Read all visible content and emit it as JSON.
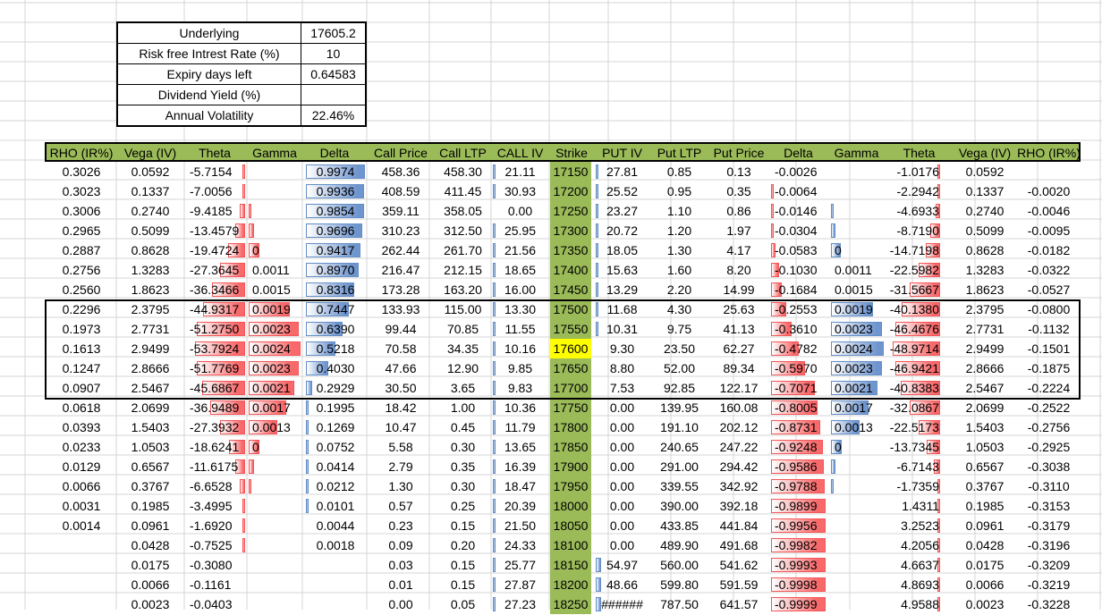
{
  "info_table": [
    {
      "label": "Underlying",
      "value": "17605.2"
    },
    {
      "label": "Risk free Intrest Rate (%)",
      "value": "10"
    },
    {
      "label": "Expiry days left",
      "value": "0.64583"
    },
    {
      "label": "Dividend Yield (%)",
      "value": ""
    },
    {
      "label": "Annual Volatility",
      "value": "22.46%"
    }
  ],
  "headers": [
    "RHO (IR%)",
    "Vega (IV)",
    "Theta",
    "Gamma",
    "Delta",
    "Call Price",
    "Call LTP",
    "CALL IV",
    "Strike",
    "PUT IV",
    "Put LTP",
    "Put Price",
    "Delta",
    "Gamma",
    "Theta",
    "Vega (IV)",
    "RHO (IR%)"
  ],
  "colors": {
    "header_bg": "#9bbb59",
    "strike_bg": "#9bbb59",
    "atm_strike_bg": "#ffff00",
    "red_bar": "#f8696b",
    "blue_bar": "#638ec6"
  },
  "rows": [
    {
      "rho_c": "0.3026",
      "vega_c": "0.0592",
      "theta_c": "-5.7154",
      "gamma_c": "",
      "delta_c": "0.9974",
      "call_price": "458.36",
      "call_ltp": "458.30",
      "call_iv": "21.11",
      "strike": "17150",
      "put_iv": "27.81",
      "put_ltp": "0.85",
      "put_price": "0.13",
      "delta_p": "-0.0026",
      "gamma_p": "",
      "theta_p": "-1.0176",
      "vega_p": "0.0592",
      "rho_p": "",
      "theta_c_bar": 0.04,
      "gamma_c_bar": 0.0,
      "delta_c_bar": 1.0,
      "call_iv_bar": 0.02,
      "put_iv_bar": 0.05,
      "delta_p_bar": 0.0,
      "gamma_p_bar": 0.0,
      "theta_p_bar": 0.02
    },
    {
      "rho_c": "0.3023",
      "vega_c": "0.1337",
      "theta_c": "-7.0056",
      "gamma_c": "",
      "delta_c": "0.9936",
      "call_price": "408.59",
      "call_ltp": "411.45",
      "call_iv": "30.93",
      "strike": "17200",
      "put_iv": "25.52",
      "put_ltp": "0.95",
      "put_price": "0.35",
      "delta_p": "-0.0064",
      "gamma_p": "",
      "theta_p": "-2.2942",
      "vega_p": "0.1337",
      "rho_p": "-0.0020",
      "theta_c_bar": 0.06,
      "gamma_c_bar": 0.0,
      "delta_c_bar": 0.99,
      "call_iv_bar": 0.03,
      "put_iv_bar": 0.04,
      "delta_p_bar": 0.01,
      "gamma_p_bar": 0.0,
      "theta_p_bar": 0.05
    },
    {
      "rho_c": "0.3006",
      "vega_c": "0.2740",
      "theta_c": "-9.4185",
      "gamma_c": "",
      "delta_c": "0.9854",
      "call_price": "359.11",
      "call_ltp": "358.05",
      "call_iv": "0.00",
      "strike": "17250",
      "put_iv": "23.27",
      "put_ltp": "1.10",
      "put_price": "0.86",
      "delta_p": "-0.0146",
      "gamma_p": "",
      "theta_p": "-4.6933",
      "vega_p": "0.2740",
      "rho_p": "-0.0046",
      "theta_c_bar": 0.1,
      "gamma_c_bar": 0.03,
      "delta_c_bar": 0.98,
      "call_iv_bar": 0.0,
      "put_iv_bar": 0.03,
      "delta_p_bar": 0.03,
      "gamma_p_bar": 0.02,
      "theta_p_bar": 0.1
    },
    {
      "rho_c": "0.2965",
      "vega_c": "0.5099",
      "theta_c": "-13.4579",
      "gamma_c": "",
      "delta_c": "0.9696",
      "call_price": "310.23",
      "call_ltp": "312.50",
      "call_iv": "25.95",
      "strike": "17300",
      "put_iv": "20.72",
      "put_ltp": "1.20",
      "put_price": "1.97",
      "delta_p": "-0.0304",
      "gamma_p": "",
      "theta_p": "-8.7190",
      "vega_p": "0.5099",
      "rho_p": "-0.0095",
      "theta_c_bar": 0.2,
      "gamma_c_bar": 0.1,
      "delta_c_bar": 0.96,
      "call_iv_bar": 0.03,
      "put_iv_bar": 0.03,
      "delta_p_bar": 0.05,
      "gamma_p_bar": 0.08,
      "theta_p_bar": 0.2
    },
    {
      "rho_c": "0.2887",
      "vega_c": "0.8628",
      "theta_c": "-19.4724",
      "gamma_c": "0",
      "delta_c": "0.9417",
      "call_price": "262.44",
      "call_ltp": "261.70",
      "call_iv": "21.56",
      "strike": "17350",
      "put_iv": "18.05",
      "put_ltp": "1.30",
      "put_price": "4.17",
      "delta_p": "-0.0583",
      "gamma_p": "0",
      "theta_p": "-14.7198",
      "vega_p": "0.8628",
      "rho_p": "-0.0182",
      "theta_c_bar": 0.33,
      "gamma_c_bar": 0.2,
      "delta_c_bar": 0.93,
      "call_iv_bar": 0.03,
      "put_iv_bar": 0.03,
      "delta_p_bar": 0.09,
      "gamma_p_bar": 0.18,
      "theta_p_bar": 0.3
    },
    {
      "rho_c": "0.2756",
      "vega_c": "1.3283",
      "theta_c": "-27.3645",
      "gamma_c": "0.0011",
      "delta_c": "0.8970",
      "call_price": "216.47",
      "call_ltp": "212.15",
      "call_iv": "18.65",
      "strike": "17400",
      "put_iv": "15.63",
      "put_ltp": "1.60",
      "put_price": "8.20",
      "delta_p": "-0.1030",
      "gamma_p": "0.0011",
      "theta_p": "-22.5982",
      "vega_p": "1.3283",
      "rho_p": "-0.0322",
      "theta_c_bar": 0.5,
      "gamma_c_bar": 0.0,
      "delta_c_bar": 0.9,
      "call_iv_bar": 0.03,
      "put_iv_bar": 0.03,
      "delta_p_bar": 0.15,
      "gamma_p_bar": 0.0,
      "theta_p_bar": 0.46
    },
    {
      "rho_c": "0.2560",
      "vega_c": "1.8623",
      "theta_c": "-36.3466",
      "gamma_c": "0.0015",
      "delta_c": "0.8316",
      "call_price": "173.28",
      "call_ltp": "163.20",
      "call_iv": "16.00",
      "strike": "17450",
      "put_iv": "13.29",
      "put_ltp": "2.20",
      "put_price": "14.99",
      "delta_p": "-0.1684",
      "gamma_p": "0.0015",
      "theta_p": "-31.5667",
      "vega_p": "1.8623",
      "rho_p": "-0.0527",
      "theta_c_bar": 0.67,
      "gamma_c_bar": 0.0,
      "delta_c_bar": 0.82,
      "call_iv_bar": 0.03,
      "put_iv_bar": 0.03,
      "delta_p_bar": 0.2,
      "gamma_p_bar": 0.0,
      "theta_p_bar": 0.64
    },
    {
      "rho_c": "0.2296",
      "vega_c": "2.3795",
      "theta_c": "-44.9317",
      "gamma_c": "0.0019",
      "delta_c": "0.7447",
      "call_price": "133.93",
      "call_ltp": "115.00",
      "call_iv": "13.30",
      "strike": "17500",
      "put_iv": "11.68",
      "put_ltp": "4.30",
      "put_price": "25.63",
      "delta_p": "-0.2553",
      "gamma_p": "0.0019",
      "theta_p": "-40.1380",
      "vega_p": "2.3795",
      "rho_p": "-0.0800",
      "theta_c_bar": 0.84,
      "gamma_c_bar": 0.8,
      "delta_c_bar": 0.72,
      "call_iv_bar": 0.03,
      "put_iv_bar": 0.03,
      "delta_p_bar": 0.28,
      "gamma_p_bar": 0.8,
      "theta_p_bar": 0.82
    },
    {
      "rho_c": "0.1973",
      "vega_c": "2.7731",
      "theta_c": "-51.2750",
      "gamma_c": "0.0023",
      "delta_c": "0.6390",
      "call_price": "99.44",
      "call_ltp": "70.85",
      "call_iv": "11.55",
      "strike": "17550",
      "put_iv": "10.31",
      "put_ltp": "9.75",
      "put_price": "41.13",
      "delta_p": "-0.3610",
      "gamma_p": "0.0023",
      "theta_p": "-46.4676",
      "vega_p": "2.7731",
      "rho_p": "-0.1132",
      "theta_c_bar": 0.96,
      "gamma_c_bar": 0.96,
      "delta_c_bar": 0.62,
      "call_iv_bar": 0.03,
      "put_iv_bar": 0.03,
      "delta_p_bar": 0.38,
      "gamma_p_bar": 0.96,
      "theta_p_bar": 0.95
    },
    {
      "rho_c": "0.1613",
      "vega_c": "2.9499",
      "theta_c": "-53.7924",
      "gamma_c": "0.0024",
      "delta_c": "0.5218",
      "call_price": "70.58",
      "call_ltp": "34.35",
      "call_iv": "10.16",
      "strike": "17600",
      "atm": true,
      "put_iv": "9.30",
      "put_ltp": "23.50",
      "put_price": "62.27",
      "delta_p": "-0.4782",
      "gamma_p": "0.0024",
      "theta_p": "-48.9714",
      "vega_p": "2.9499",
      "rho_p": "-0.1501",
      "theta_c_bar": 1.0,
      "gamma_c_bar": 1.0,
      "delta_c_bar": 0.5,
      "call_iv_bar": 0.03,
      "put_iv_bar": 0.0,
      "delta_p_bar": 0.5,
      "gamma_p_bar": 1.0,
      "theta_p_bar": 1.0
    },
    {
      "rho_c": "0.1247",
      "vega_c": "2.8666",
      "theta_c": "-51.7769",
      "gamma_c": "0.0023",
      "delta_c": "0.4030",
      "call_price": "47.66",
      "call_ltp": "12.90",
      "call_iv": "9.85",
      "strike": "17650",
      "put_iv": "8.80",
      "put_ltp": "52.00",
      "put_price": "89.34",
      "delta_p": "-0.5970",
      "gamma_p": "0.0023",
      "theta_p": "-46.9421",
      "vega_p": "2.8666",
      "rho_p": "-0.1875",
      "theta_c_bar": 0.96,
      "gamma_c_bar": 0.96,
      "delta_c_bar": 0.38,
      "call_iv_bar": 0.03,
      "put_iv_bar": 0.0,
      "delta_p_bar": 0.62,
      "gamma_p_bar": 0.96,
      "theta_p_bar": 0.95
    },
    {
      "rho_c": "0.0907",
      "vega_c": "2.5467",
      "theta_c": "-45.6867",
      "gamma_c": "0.0021",
      "delta_c": "0.2929",
      "call_price": "30.50",
      "call_ltp": "3.65",
      "call_iv": "9.83",
      "strike": "17700",
      "put_iv": "7.53",
      "put_ltp": "92.85",
      "put_price": "122.17",
      "delta_p": "-0.7071",
      "gamma_p": "0.0021",
      "theta_p": "-40.8383",
      "vega_p": "2.5467",
      "rho_p": "-0.2224",
      "theta_c_bar": 0.85,
      "gamma_c_bar": 0.88,
      "delta_c_bar": 0.1,
      "call_iv_bar": 0.03,
      "put_iv_bar": 0.0,
      "delta_p_bar": 0.8,
      "gamma_p_bar": 0.88,
      "theta_p_bar": 0.83
    },
    {
      "rho_c": "0.0618",
      "vega_c": "2.0699",
      "theta_c": "-36.9489",
      "gamma_c": "0.0017",
      "delta_c": "0.1995",
      "call_price": "18.42",
      "call_ltp": "1.00",
      "call_iv": "10.36",
      "strike": "17750",
      "put_iv": "0.00",
      "put_ltp": "139.95",
      "put_price": "160.08",
      "delta_p": "-0.8005",
      "gamma_p": "0.0017",
      "theta_p": "-32.0867",
      "vega_p": "2.0699",
      "rho_p": "-0.2522",
      "theta_c_bar": 0.69,
      "gamma_c_bar": 0.72,
      "delta_c_bar": 0.05,
      "call_iv_bar": 0.03,
      "put_iv_bar": 0.0,
      "delta_p_bar": 0.86,
      "gamma_p_bar": 0.72,
      "theta_p_bar": 0.65
    },
    {
      "rho_c": "0.0393",
      "vega_c": "1.5403",
      "theta_c": "-27.3932",
      "gamma_c": "0.0013",
      "delta_c": "0.1269",
      "call_price": "10.47",
      "call_ltp": "0.45",
      "call_iv": "11.79",
      "strike": "17800",
      "put_iv": "0.00",
      "put_ltp": "191.10",
      "put_price": "202.12",
      "delta_p": "-0.8731",
      "gamma_p": "0.0013",
      "theta_p": "-22.5173",
      "vega_p": "1.5403",
      "rho_p": "-0.2756",
      "theta_c_bar": 0.5,
      "gamma_c_bar": 0.55,
      "delta_c_bar": 0.03,
      "call_iv_bar": 0.03,
      "put_iv_bar": 0.0,
      "delta_p_bar": 0.9,
      "gamma_p_bar": 0.55,
      "theta_p_bar": 0.46
    },
    {
      "rho_c": "0.0233",
      "vega_c": "1.0503",
      "theta_c": "-18.6241",
      "gamma_c": "0",
      "delta_c": "0.0752",
      "call_price": "5.58",
      "call_ltp": "0.30",
      "call_iv": "13.65",
      "strike": "17850",
      "put_iv": "0.00",
      "put_ltp": "240.65",
      "put_price": "247.22",
      "delta_p": "-0.9248",
      "gamma_p": "0",
      "theta_p": "-13.7345",
      "vega_p": "1.0503",
      "rho_p": "-0.2925",
      "theta_c_bar": 0.32,
      "gamma_c_bar": 0.2,
      "delta_c_bar": 0.02,
      "call_iv_bar": 0.03,
      "put_iv_bar": 0.0,
      "delta_p_bar": 0.95,
      "gamma_p_bar": 0.2,
      "theta_p_bar": 0.28
    },
    {
      "rho_c": "0.0129",
      "vega_c": "0.6567",
      "theta_c": "-11.6175",
      "gamma_c": "",
      "delta_c": "0.0414",
      "call_price": "2.79",
      "call_ltp": "0.35",
      "call_iv": "16.39",
      "strike": "17900",
      "put_iv": "0.00",
      "put_ltp": "291.00",
      "put_price": "294.42",
      "delta_p": "-0.9586",
      "gamma_p": "",
      "theta_p": "-6.7143",
      "vega_p": "0.6567",
      "rho_p": "-0.3038",
      "theta_c_bar": 0.2,
      "gamma_c_bar": 0.1,
      "delta_c_bar": 0.01,
      "call_iv_bar": 0.03,
      "put_iv_bar": 0.0,
      "delta_p_bar": 0.97,
      "gamma_p_bar": 0.08,
      "theta_p_bar": 0.14
    },
    {
      "rho_c": "0.0066",
      "vega_c": "0.3767",
      "theta_c": "-6.6528",
      "gamma_c": "",
      "delta_c": "0.0212",
      "call_price": "1.30",
      "call_ltp": "0.30",
      "call_iv": "18.47",
      "strike": "17950",
      "put_iv": "0.00",
      "put_ltp": "339.55",
      "put_price": "342.92",
      "delta_p": "-0.9788",
      "gamma_p": "",
      "theta_p": "-1.7359",
      "vega_p": "0.3767",
      "rho_p": "-0.3110",
      "theta_c_bar": 0.1,
      "gamma_c_bar": 0.03,
      "delta_c_bar": 0.01,
      "call_iv_bar": 0.03,
      "put_iv_bar": 0.0,
      "delta_p_bar": 0.99,
      "gamma_p_bar": 0.02,
      "theta_p_bar": 0.04
    },
    {
      "rho_c": "0.0031",
      "vega_c": "0.1985",
      "theta_c": "-3.4995",
      "gamma_c": "",
      "delta_c": "0.0101",
      "call_price": "0.57",
      "call_ltp": "0.25",
      "call_iv": "20.39",
      "strike": "18000",
      "put_iv": "0.00",
      "put_ltp": "390.00",
      "put_price": "392.18",
      "delta_p": "-0.9899",
      "gamma_p": "",
      "theta_p": "1.4311",
      "vega_p": "0.1985",
      "rho_p": "-0.3153",
      "theta_c_bar": 0.05,
      "gamma_c_bar": 0.0,
      "delta_c_bar": 0.01,
      "call_iv_bar": 0.03,
      "put_iv_bar": 0.0,
      "delta_p_bar": 1.0,
      "gamma_p_bar": 0.0,
      "theta_p_bar": 0.02
    },
    {
      "rho_c": "0.0014",
      "vega_c": "0.0961",
      "theta_c": "-1.6920",
      "gamma_c": "",
      "delta_c": "0.0044",
      "call_price": "0.23",
      "call_ltp": "0.15",
      "call_iv": "21.50",
      "strike": "18050",
      "put_iv": "0.00",
      "put_ltp": "433.85",
      "put_price": "441.84",
      "delta_p": "-0.9956",
      "gamma_p": "",
      "theta_p": "3.2523",
      "vega_p": "0.0961",
      "rho_p": "-0.3179",
      "theta_c_bar": 0.02,
      "gamma_c_bar": 0.0,
      "delta_c_bar": 0.0,
      "call_iv_bar": 0.03,
      "put_iv_bar": 0.0,
      "delta_p_bar": 1.0,
      "gamma_p_bar": 0.0,
      "theta_p_bar": 0.02
    },
    {
      "rho_c": "",
      "vega_c": "0.0428",
      "theta_c": "-0.7525",
      "gamma_c": "",
      "delta_c": "0.0018",
      "call_price": "0.09",
      "call_ltp": "0.20",
      "call_iv": "24.33",
      "strike": "18100",
      "put_iv": "0.00",
      "put_ltp": "489.90",
      "put_price": "491.68",
      "delta_p": "-0.9982",
      "gamma_p": "",
      "theta_p": "4.2056",
      "vega_p": "0.0428",
      "rho_p": "-0.3196",
      "theta_c_bar": 0.01,
      "gamma_c_bar": 0.0,
      "delta_c_bar": 0.0,
      "call_iv_bar": 0.03,
      "put_iv_bar": 0.0,
      "delta_p_bar": 1.0,
      "gamma_p_bar": 0.0,
      "theta_p_bar": 0.02
    },
    {
      "rho_c": "",
      "vega_c": "0.0175",
      "theta_c": "-0.3080",
      "gamma_c": "",
      "delta_c": "",
      "call_price": "0.03",
      "call_ltp": "0.15",
      "call_iv": "25.77",
      "strike": "18150",
      "put_iv": "54.97",
      "put_ltp": "560.00",
      "put_price": "541.62",
      "delta_p": "-0.9993",
      "gamma_p": "",
      "theta_p": "4.6637",
      "vega_p": "0.0175",
      "rho_p": "-0.3209",
      "theta_c_bar": 0.0,
      "gamma_c_bar": 0.0,
      "delta_c_bar": 0.0,
      "call_iv_bar": 0.03,
      "put_iv_bar": 0.1,
      "delta_p_bar": 1.0,
      "gamma_p_bar": 0.0,
      "theta_p_bar": 0.02
    },
    {
      "rho_c": "",
      "vega_c": "0.0066",
      "theta_c": "-0.1161",
      "gamma_c": "",
      "delta_c": "",
      "call_price": "0.01",
      "call_ltp": "0.15",
      "call_iv": "27.87",
      "strike": "18200",
      "put_iv": "48.66",
      "put_ltp": "599.80",
      "put_price": "591.59",
      "delta_p": "-0.9998",
      "gamma_p": "",
      "theta_p": "4.8693",
      "vega_p": "0.0066",
      "rho_p": "-0.3219",
      "theta_c_bar": 0.0,
      "gamma_c_bar": 0.0,
      "delta_c_bar": 0.0,
      "call_iv_bar": 0.03,
      "put_iv_bar": 0.1,
      "delta_p_bar": 1.0,
      "gamma_p_bar": 0.0,
      "theta_p_bar": 0.02
    },
    {
      "rho_c": "",
      "vega_c": "0.0023",
      "theta_c": "-0.0403",
      "gamma_c": "",
      "delta_c": "",
      "call_price": "0.00",
      "call_ltp": "0.05",
      "call_iv": "27.23",
      "strike": "18250",
      "put_iv": "######",
      "put_ltp": "787.50",
      "put_price": "641.57",
      "delta_p": "-0.9999",
      "gamma_p": "",
      "theta_p": "4.9588",
      "vega_p": "0.0023",
      "rho_p": "-0.3228",
      "theta_c_bar": 0.0,
      "gamma_c_bar": 0.0,
      "delta_c_bar": 0.0,
      "call_iv_bar": 0.03,
      "put_iv_bar": 0.1,
      "delta_p_bar": 1.0,
      "gamma_p_bar": 0.0,
      "theta_p_bar": 0.02
    }
  ]
}
